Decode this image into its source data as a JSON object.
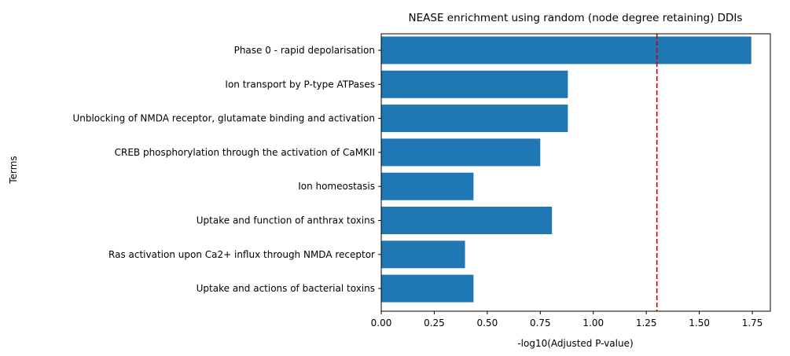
{
  "chart_data": {
    "type": "bar",
    "orientation": "horizontal",
    "title": "NEASE enrichment using random (node degree retaining) DDIs",
    "xlabel": "-log10(Adjusted P-value)",
    "ylabel": "Terms",
    "xlim": [
      0,
      1.835
    ],
    "xticks": [
      "0.00",
      "0.25",
      "0.50",
      "0.75",
      "1.00",
      "1.25",
      "1.50",
      "1.75"
    ],
    "categories": [
      "Phase 0 - rapid depolarisation",
      "Ion transport by P-type ATPases",
      "Unblocking of NMDA receptor, glutamate binding and activation",
      "CREB phosphorylation through the activation of CaMKII",
      "Ion homeostasis",
      "Uptake and function of anthrax toxins",
      "Ras activation upon Ca2+ influx through NMDA receptor",
      "Uptake and actions of bacterial toxins"
    ],
    "values": [
      1.745,
      0.88,
      0.88,
      0.75,
      0.435,
      0.805,
      0.395,
      0.435
    ],
    "threshold": {
      "value": 1.3,
      "style": "dashed",
      "color": "#cc0000"
    },
    "bar_color": "#1f77b4",
    "grid": false,
    "legend": "none"
  }
}
